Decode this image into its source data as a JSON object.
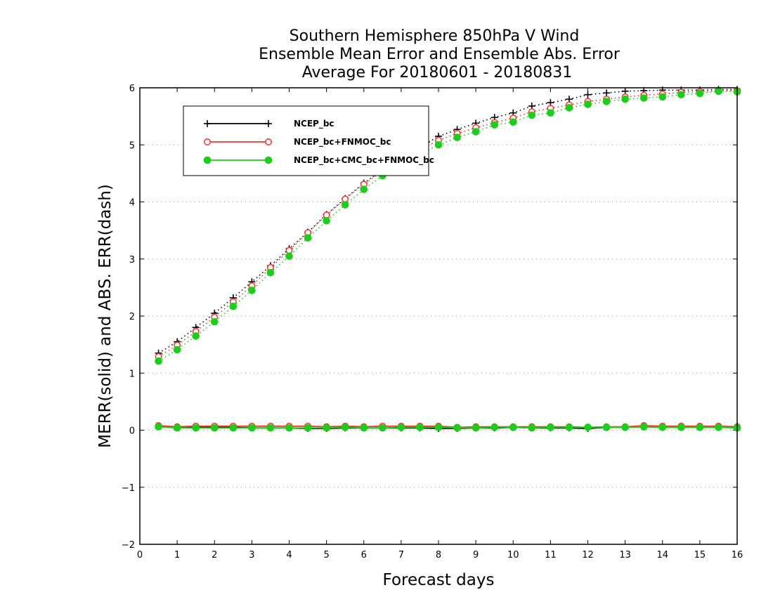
{
  "chart_data": {
    "type": "line",
    "title": [
      "Southern Hemisphere 850hPa V Wind",
      "Ensemble Mean Error and Ensemble Abs. Error",
      "Average For 20180601 - 20180831"
    ],
    "xlabel": "Forecast days",
    "ylabel": "MERR(solid) and ABS. ERR(dash)",
    "xlim": [
      0,
      16
    ],
    "ylim": [
      -2,
      6
    ],
    "xticks": [
      "0",
      "1",
      "2",
      "3",
      "4",
      "5",
      "6",
      "7",
      "8",
      "9",
      "10",
      "11",
      "12",
      "13",
      "14",
      "15",
      "16"
    ],
    "yticks": [
      "−2",
      "−1",
      "0",
      "1",
      "2",
      "3",
      "4",
      "5",
      "6"
    ],
    "grid": "y-dotted",
    "legend_position": "top-left",
    "x": [
      0.5,
      1,
      1.5,
      2,
      2.5,
      3,
      3.5,
      4,
      4.5,
      5,
      5.5,
      6,
      6.5,
      7,
      7.5,
      8,
      8.5,
      9,
      9.5,
      10,
      10.5,
      11,
      11.5,
      12,
      12.5,
      13,
      13.5,
      14,
      14.5,
      15,
      15.5,
      16
    ],
    "series": [
      {
        "name": "NCEP_bc",
        "color": "#000000",
        "marker": "plus",
        "abs_err": [
          1.35,
          1.55,
          1.8,
          2.05,
          2.32,
          2.6,
          2.88,
          3.18,
          3.47,
          3.78,
          4.06,
          4.33,
          4.56,
          4.76,
          4.95,
          5.15,
          5.27,
          5.38,
          5.48,
          5.56,
          5.68,
          5.74,
          5.8,
          5.88,
          5.91,
          5.94,
          5.95,
          5.96,
          5.96,
          5.96,
          5.97,
          5.97
        ],
        "mean_err": [
          0.07,
          0.05,
          0.05,
          0.05,
          0.05,
          0.04,
          0.04,
          0.04,
          0.03,
          0.03,
          0.04,
          0.04,
          0.04,
          0.04,
          0.04,
          0.03,
          0.03,
          0.04,
          0.04,
          0.05,
          0.04,
          0.04,
          0.04,
          0.03,
          0.05,
          0.05,
          0.06,
          0.05,
          0.05,
          0.05,
          0.05,
          0.05
        ]
      },
      {
        "name": "NCEP_bc+FNMOC_bc",
        "color": "#ff3030",
        "marker": "open-circle",
        "abs_err": [
          1.29,
          1.49,
          1.73,
          1.98,
          2.25,
          2.53,
          2.85,
          3.15,
          3.46,
          3.77,
          4.05,
          4.31,
          4.54,
          4.74,
          4.92,
          5.08,
          5.2,
          5.3,
          5.39,
          5.47,
          5.58,
          5.64,
          5.7,
          5.76,
          5.8,
          5.84,
          5.87,
          5.89,
          5.92,
          5.93,
          5.95,
          5.95
        ],
        "mean_err": [
          0.08,
          0.06,
          0.07,
          0.07,
          0.07,
          0.07,
          0.07,
          0.07,
          0.07,
          0.06,
          0.07,
          0.06,
          0.07,
          0.07,
          0.07,
          0.07,
          0.05,
          0.06,
          0.06,
          0.06,
          0.06,
          0.06,
          0.06,
          0.05,
          0.06,
          0.06,
          0.08,
          0.07,
          0.07,
          0.07,
          0.07,
          0.06
        ]
      },
      {
        "name": "NCEP_bc+CMC_bc+FNMOC_bc",
        "color": "#18d018",
        "marker": "filled-circle",
        "abs_err": [
          1.21,
          1.41,
          1.65,
          1.9,
          2.17,
          2.45,
          2.76,
          3.05,
          3.37,
          3.67,
          3.95,
          4.22,
          4.46,
          4.66,
          4.84,
          5.0,
          5.13,
          5.23,
          5.35,
          5.4,
          5.52,
          5.56,
          5.65,
          5.71,
          5.76,
          5.8,
          5.82,
          5.84,
          5.88,
          5.9,
          5.94,
          5.93
        ],
        "mean_err": [
          0.06,
          0.04,
          0.04,
          0.04,
          0.04,
          0.04,
          0.04,
          0.04,
          0.04,
          0.04,
          0.05,
          0.04,
          0.04,
          0.05,
          0.05,
          0.05,
          0.04,
          0.04,
          0.05,
          0.05,
          0.04,
          0.05,
          0.05,
          0.05,
          0.05,
          0.05,
          0.06,
          0.05,
          0.05,
          0.05,
          0.05,
          0.04
        ]
      }
    ]
  }
}
